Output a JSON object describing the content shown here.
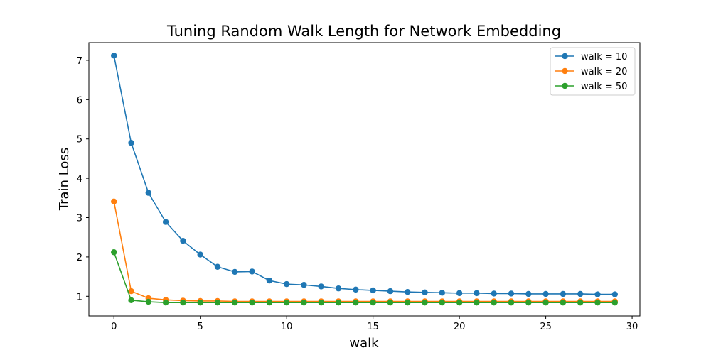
{
  "chart_data": {
    "type": "line",
    "title": "Tuning Random Walk Length for Network Embedding",
    "xlabel": "walk",
    "ylabel": "Train Loss",
    "xlim": [
      -1.45,
      30.45
    ],
    "ylim": [
      0.5,
      7.45
    ],
    "xticks": [
      0,
      5,
      10,
      15,
      20,
      25,
      30
    ],
    "yticks": [
      1,
      2,
      3,
      4,
      5,
      6,
      7
    ],
    "grid": false,
    "legend_position": "top-right",
    "x": [
      0,
      1,
      2,
      3,
      4,
      5,
      6,
      7,
      8,
      9,
      10,
      11,
      12,
      13,
      14,
      15,
      16,
      17,
      18,
      19,
      20,
      21,
      22,
      23,
      24,
      25,
      26,
      27,
      28,
      29
    ],
    "series": [
      {
        "name": "walk = 10",
        "color": "#1f77b4",
        "values": [
          7.12,
          4.9,
          3.63,
          2.89,
          2.41,
          2.06,
          1.75,
          1.62,
          1.63,
          1.4,
          1.31,
          1.29,
          1.25,
          1.2,
          1.17,
          1.15,
          1.13,
          1.11,
          1.1,
          1.09,
          1.08,
          1.08,
          1.07,
          1.07,
          1.06,
          1.06,
          1.06,
          1.06,
          1.05,
          1.05
        ]
      },
      {
        "name": "walk = 20",
        "color": "#ff7f0e",
        "values": [
          3.41,
          1.13,
          0.95,
          0.91,
          0.89,
          0.88,
          0.88,
          0.87,
          0.87,
          0.87,
          0.87,
          0.87,
          0.87,
          0.87,
          0.87,
          0.87,
          0.87,
          0.87,
          0.87,
          0.87,
          0.87,
          0.87,
          0.87,
          0.87,
          0.87,
          0.87,
          0.87,
          0.87,
          0.87,
          0.87
        ]
      },
      {
        "name": "walk = 50",
        "color": "#2ca02c",
        "values": [
          2.12,
          0.9,
          0.86,
          0.84,
          0.84,
          0.84,
          0.84,
          0.84,
          0.84,
          0.84,
          0.84,
          0.84,
          0.84,
          0.84,
          0.84,
          0.84,
          0.84,
          0.84,
          0.84,
          0.84,
          0.84,
          0.84,
          0.84,
          0.84,
          0.84,
          0.84,
          0.84,
          0.84,
          0.84,
          0.84
        ]
      }
    ]
  }
}
